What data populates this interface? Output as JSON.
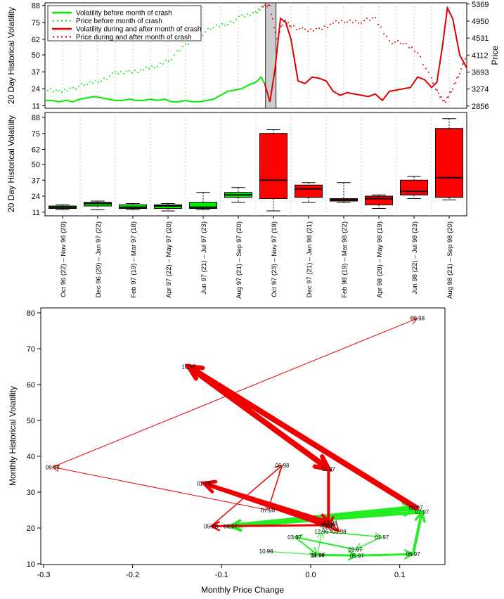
{
  "chart_data": [
    {
      "type": "line",
      "ylabel": "20 Day Historical Volatility",
      "y2label": "Price",
      "yticks": [
        11,
        24,
        37,
        50,
        62,
        75,
        88
      ],
      "y2ticks": [
        2856,
        3274,
        3693,
        4112,
        4531,
        4950,
        5369
      ],
      "ylim": [
        9,
        90
      ],
      "y2lim": [
        2800,
        5400
      ],
      "legend_position": "top-left",
      "legend": [
        "Volatility before month of crash",
        "Price before month of crash",
        "Volatility during and after month of crash",
        "Price during and after month of crash"
      ],
      "colors": {
        "before": "#00ee00",
        "after": "#e00000",
        "crash_band": "#cccccc"
      },
      "x_range": [
        0,
        24
      ],
      "crash_window": [
        12.55,
        13.15
      ],
      "volatility_before": {
        "x": [
          0,
          0.4,
          0.8,
          1.2,
          1.6,
          2,
          2.4,
          2.8,
          3.2,
          3.6,
          4,
          4.4,
          4.8,
          5.2,
          5.6,
          6,
          6.4,
          6.8,
          7.2,
          7.6,
          8,
          8.4,
          8.8,
          9.2,
          9.6,
          10,
          10.4,
          10.8,
          11.2,
          11.6,
          12,
          12.3,
          12.5
        ],
        "y": [
          15,
          15,
          14,
          15,
          14,
          16,
          17,
          18,
          17,
          16,
          15,
          15,
          16,
          15,
          15,
          16,
          15,
          16,
          14,
          14,
          15,
          14,
          14,
          15,
          16,
          19,
          22,
          23,
          24,
          27,
          29,
          33,
          28
        ]
      },
      "volatility_after": {
        "x": [
          12.5,
          12.8,
          13.1,
          13.4,
          13.7,
          14,
          14.4,
          14.8,
          15.2,
          15.6,
          16,
          16.4,
          16.8,
          17.2,
          17.6,
          18,
          18.4,
          18.8,
          19.2,
          19.6,
          20,
          20.4,
          20.8,
          21.2,
          21.6,
          22,
          22.3,
          22.6,
          22.9,
          23.2,
          23.6,
          24
        ],
        "y": [
          28,
          14,
          40,
          78,
          75,
          62,
          30,
          28,
          33,
          32,
          30,
          22,
          19,
          21,
          20,
          19,
          18,
          20,
          15,
          22,
          23,
          24,
          25,
          33,
          31,
          25,
          29,
          55,
          86,
          78,
          50,
          40
        ]
      },
      "price_before": {
        "x": [
          0,
          0.8,
          1.6,
          2.4,
          3.2,
          4,
          4.8,
          5.6,
          6.4,
          7.2,
          8,
          8.8,
          9.6,
          10.4,
          11.2,
          12,
          12.4
        ],
        "y": [
          3250,
          3200,
          3300,
          3400,
          3500,
          3650,
          3700,
          3750,
          3850,
          4050,
          4350,
          4600,
          4800,
          4900,
          5050,
          5150,
          5350
        ]
      },
      "price_after": {
        "x": [
          12.4,
          12.8,
          13.2,
          13.6,
          14,
          14.8,
          15.6,
          16.4,
          17.2,
          18,
          18.8,
          19.6,
          20.4,
          21.2,
          22,
          22.4,
          22.8,
          23.2,
          23.6,
          24
        ],
        "y": [
          5350,
          5300,
          4500,
          4950,
          4850,
          4700,
          4750,
          4900,
          4950,
          4950,
          5000,
          4450,
          4400,
          4200,
          3500,
          3150,
          2950,
          3300,
          3700,
          4050
        ]
      }
    },
    {
      "type": "box",
      "ylabel": "20 Day Historical Volatility",
      "yticks": [
        11,
        24,
        37,
        50,
        62,
        75,
        88
      ],
      "ylim": [
        8,
        92
      ],
      "boxes": [
        {
          "label": "Oct 96 (22) – Nov 96 (20)",
          "color": "green",
          "min": 13,
          "q1": 14,
          "median": 15,
          "q3": 16,
          "max": 17
        },
        {
          "label": "Dec 96 (20) – Jan 97 (22)",
          "color": "green",
          "min": 13,
          "q1": 16,
          "median": 18,
          "q3": 19,
          "max": 20
        },
        {
          "label": "Feb 97 (19) – Mar 97 (18)",
          "color": "green",
          "min": 13,
          "q1": 14,
          "median": 15,
          "q3": 17,
          "max": 18
        },
        {
          "label": "Apr 97 (22) – May 97 (20)",
          "color": "green",
          "min": 12,
          "q1": 14,
          "median": 16,
          "q3": 17,
          "max": 18
        },
        {
          "label": "Jun 97 (21) – Jul 97 (23)",
          "color": "green",
          "min": 13,
          "q1": 14,
          "median": 15,
          "q3": 19,
          "max": 27
        },
        {
          "label": "Aug 97 (21) – Sep 97 (20)",
          "color": "green",
          "min": 19,
          "q1": 23,
          "median": 25,
          "q3": 27,
          "max": 31
        },
        {
          "label": "Oct 97 (23) – Nov 97 (19)",
          "color": "red",
          "min": 12,
          "q1": 22,
          "median": 37,
          "q3": 75,
          "max": 78
        },
        {
          "label": "Dec 97 (21) – Jan 98 (21)",
          "color": "red",
          "min": 19,
          "q1": 23,
          "median": 30,
          "q3": 33,
          "max": 35
        },
        {
          "label": "Feb 98 (19) – Mar 98 (22)",
          "color": "red",
          "min": 19,
          "q1": 20,
          "median": 21,
          "q3": 22,
          "max": 35
        },
        {
          "label": "Apr 98 (20) – May 98 (19)",
          "color": "red",
          "min": 14,
          "q1": 17,
          "median": 22,
          "q3": 24,
          "max": 25
        },
        {
          "label": "Jun 98 (22) – Jul 98 (23)",
          "color": "red",
          "min": 22,
          "q1": 25,
          "median": 28,
          "q3": 37,
          "max": 40
        },
        {
          "label": "Aug 98 (21) – Sep 98 (20)",
          "color": "red",
          "min": 21,
          "q1": 23,
          "median": 39,
          "q3": 79,
          "max": 87
        }
      ]
    },
    {
      "type": "scatter",
      "xlabel": "Monthly Price Change",
      "ylabel": "Monthly Historical Volatility",
      "xlim": [
        -0.3,
        0.15
      ],
      "ylim": [
        10,
        80
      ],
      "xticks": [
        -0.3,
        -0.2,
        -0.1,
        0.0,
        0.1
      ],
      "yticks": [
        10,
        20,
        30,
        40,
        50,
        60,
        70,
        80
      ],
      "points": [
        {
          "label": "10.96",
          "x": -0.05,
          "y": 13.5
        },
        {
          "label": "11.96",
          "x": 0.008,
          "y": 12.5
        },
        {
          "label": "12.96",
          "x": 0.012,
          "y": 19
        },
        {
          "label": "01.97",
          "x": 0.08,
          "y": 17.5
        },
        {
          "label": "02.97",
          "x": 0.05,
          "y": 14
        },
        {
          "label": "03.97",
          "x": -0.018,
          "y": 17.5
        },
        {
          "label": "04.97",
          "x": 0.008,
          "y": 12.5
        },
        {
          "label": "05.97",
          "x": 0.052,
          "y": 12.3
        },
        {
          "label": "06.97",
          "x": 0.115,
          "y": 12.7
        },
        {
          "label": "07.97",
          "x": 0.125,
          "y": 24.5
        },
        {
          "label": "08.97",
          "x": -0.09,
          "y": 20.5
        },
        {
          "label": "09.97",
          "x": 0.118,
          "y": 25.7
        },
        {
          "label": "10.97",
          "x": -0.137,
          "y": 65
        },
        {
          "label": "11.97",
          "x": 0.02,
          "y": 36.5
        },
        {
          "label": "12.97",
          "x": 0.02,
          "y": 20.5
        },
        {
          "label": "01.98",
          "x": -0.12,
          "y": 32.5
        },
        {
          "label": "02.98",
          "x": 0.022,
          "y": 21.5
        },
        {
          "label": "03.98",
          "x": 0.032,
          "y": 19
        },
        {
          "label": "04.98",
          "x": 0.018,
          "y": 20.8
        },
        {
          "label": "05.98",
          "x": -0.112,
          "y": 20.5
        },
        {
          "label": "06.98",
          "x": -0.032,
          "y": 37.5
        },
        {
          "label": "07.98",
          "x": -0.048,
          "y": 25
        },
        {
          "label": "08.98",
          "x": -0.29,
          "y": 37
        },
        {
          "label": "09.98",
          "x": 0.12,
          "y": 78.5
        }
      ],
      "arrows_before": [
        {
          "from": "10.96",
          "to": "11.96",
          "width": 1
        },
        {
          "from": "11.96",
          "to": "12.96",
          "width": 1
        },
        {
          "from": "12.96",
          "to": "01.97",
          "width": 1.5
        },
        {
          "from": "01.97",
          "to": "02.97",
          "width": 1.5
        },
        {
          "from": "02.97",
          "to": "03.97",
          "width": 2
        },
        {
          "from": "03.97",
          "to": "04.97",
          "width": 2
        },
        {
          "from": "04.97",
          "to": "05.97",
          "width": 3
        },
        {
          "from": "05.97",
          "to": "06.97",
          "width": 3
        },
        {
          "from": "06.97",
          "to": "07.97",
          "width": 4
        },
        {
          "from": "07.97",
          "to": "08.97",
          "width": 5
        },
        {
          "from": "08.97",
          "to": "09.97",
          "width": 7
        }
      ],
      "arrows_after": [
        {
          "from": "09.97",
          "to": "10.97",
          "width": 8
        },
        {
          "from": "10.97",
          "to": "11.97",
          "width": 8
        },
        {
          "from": "11.97",
          "to": "12.97",
          "width": 4
        },
        {
          "from": "12.97",
          "to": "01.98",
          "width": 6
        },
        {
          "from": "01.98",
          "to": "02.98",
          "width": 5
        },
        {
          "from": "02.98",
          "to": "03.98",
          "width": 2
        },
        {
          "from": "03.98",
          "to": "04.98",
          "width": 2
        },
        {
          "from": "04.98",
          "to": "05.98",
          "width": 3
        },
        {
          "from": "05.98",
          "to": "06.98",
          "width": 1.5
        },
        {
          "from": "06.98",
          "to": "07.98",
          "width": 1.5
        },
        {
          "from": "07.98",
          "to": "08.98",
          "width": 1
        },
        {
          "from": "08.98",
          "to": "09.98",
          "width": 1
        }
      ]
    }
  ]
}
